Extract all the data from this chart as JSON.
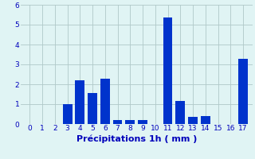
{
  "categories": [
    0,
    1,
    2,
    3,
    4,
    5,
    6,
    7,
    8,
    9,
    10,
    11,
    12,
    13,
    14,
    15,
    16,
    17
  ],
  "values": [
    0,
    0,
    0,
    1.0,
    2.2,
    1.55,
    2.3,
    0.22,
    0.2,
    0.22,
    0,
    5.35,
    1.15,
    0.38,
    0.4,
    0,
    0,
    3.3
  ],
  "bar_color": "#0033cc",
  "xlabel": "Précipitations 1h ( mm )",
  "ylim": [
    0,
    6
  ],
  "yticks": [
    0,
    1,
    2,
    3,
    4,
    5,
    6
  ],
  "xticks": [
    0,
    1,
    2,
    3,
    4,
    5,
    6,
    7,
    8,
    9,
    10,
    11,
    12,
    13,
    14,
    15,
    16,
    17
  ],
  "background_color": "#e0f4f4",
  "grid_color": "#b0c8c8",
  "xlabel_fontsize": 8,
  "tick_fontsize": 6.5,
  "tick_color": "#0000bb",
  "xlabel_color": "#0000bb"
}
